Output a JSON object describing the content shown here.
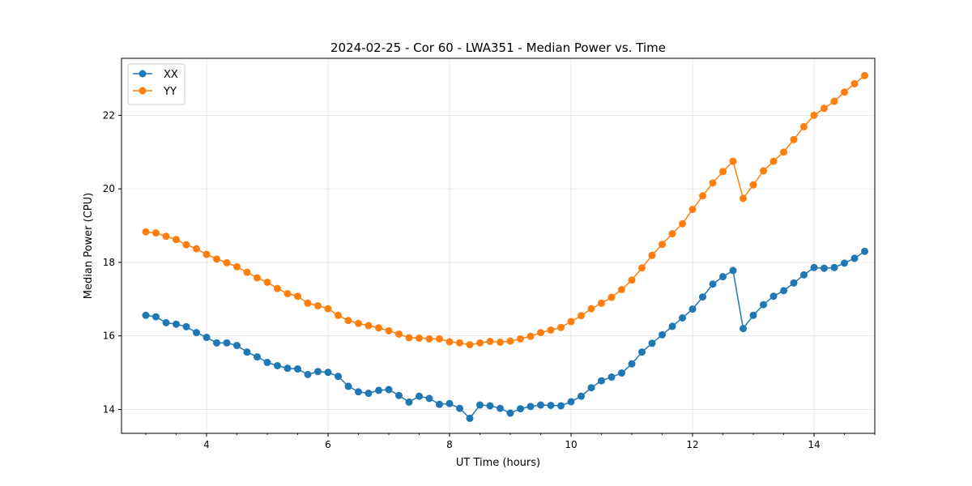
{
  "chart_data": {
    "type": "line",
    "title": "2024-02-25 - Cor 60 - LWA351 - Median Power vs. Time",
    "xlabel": "UT Time (hours)",
    "ylabel": "Median Power (CPU)",
    "xlim": [
      2.6,
      15.0
    ],
    "ylim": [
      13.35,
      23.55
    ],
    "xticks": [
      4,
      6,
      8,
      10,
      12,
      14
    ],
    "xtick_labels": [
      "4",
      "6",
      "8",
      "10",
      "12",
      "14"
    ],
    "yticks": [
      14,
      16,
      18,
      20,
      22
    ],
    "ytick_labels": [
      "14",
      "16",
      "18",
      "20",
      "22"
    ],
    "grid": true,
    "legend_position": "top-left",
    "x": [
      3.0,
      3.1667,
      3.3333,
      3.5,
      3.6667,
      3.8333,
      4.0,
      4.1667,
      4.3333,
      4.5,
      4.6667,
      4.8333,
      5.0,
      5.1667,
      5.3333,
      5.5,
      5.6667,
      5.8333,
      6.0,
      6.1667,
      6.3333,
      6.5,
      6.6667,
      6.8333,
      7.0,
      7.1667,
      7.3333,
      7.5,
      7.6667,
      7.8333,
      8.0,
      8.1667,
      8.3333,
      8.5,
      8.6667,
      8.8333,
      9.0,
      9.1667,
      9.3333,
      9.5,
      9.6667,
      9.8333,
      10.0,
      10.1667,
      10.3333,
      10.5,
      10.6667,
      10.8333,
      11.0,
      11.1667,
      11.3333,
      11.5,
      11.6667,
      11.8333,
      12.0,
      12.1667,
      12.3333,
      12.5,
      12.6667,
      12.8333,
      13.0,
      13.1667,
      13.3333,
      13.5,
      13.6667,
      13.8333,
      14.0,
      14.1667,
      14.3333,
      14.5,
      14.6667,
      14.8333
    ],
    "series": [
      {
        "name": "XX",
        "color": "#1f77b4",
        "values": [
          16.56,
          16.52,
          16.36,
          16.32,
          16.25,
          16.09,
          15.96,
          15.81,
          15.81,
          15.74,
          15.56,
          15.43,
          15.28,
          15.19,
          15.12,
          15.1,
          14.95,
          15.03,
          15.01,
          14.9,
          14.63,
          14.48,
          14.44,
          14.52,
          14.54,
          14.38,
          14.2,
          14.36,
          14.3,
          14.14,
          14.16,
          14.03,
          13.76,
          14.12,
          14.1,
          14.03,
          13.9,
          14.02,
          14.08,
          14.12,
          14.11,
          14.1,
          14.21,
          14.36,
          14.59,
          14.78,
          14.88,
          14.99,
          15.24,
          15.56,
          15.8,
          16.03,
          16.26,
          16.49,
          16.73,
          17.06,
          17.41,
          17.61,
          17.78,
          16.2,
          16.56,
          16.85,
          17.08,
          17.23,
          17.44,
          17.66,
          17.86,
          17.84,
          17.86,
          17.98,
          18.11,
          18.3
        ]
      },
      {
        "name": "YY",
        "color": "#ff7f0e",
        "values": [
          18.83,
          18.8,
          18.71,
          18.62,
          18.48,
          18.37,
          18.22,
          18.09,
          17.99,
          17.88,
          17.73,
          17.58,
          17.46,
          17.29,
          17.15,
          17.08,
          16.89,
          16.82,
          16.74,
          16.56,
          16.42,
          16.34,
          16.28,
          16.22,
          16.14,
          16.05,
          15.95,
          15.94,
          15.92,
          15.92,
          15.84,
          15.81,
          15.76,
          15.81,
          15.85,
          15.83,
          15.86,
          15.92,
          15.99,
          16.09,
          16.16,
          16.23,
          16.39,
          16.55,
          16.74,
          16.89,
          17.05,
          17.26,
          17.52,
          17.85,
          18.19,
          18.49,
          18.78,
          19.05,
          19.44,
          19.81,
          20.16,
          20.47,
          20.75,
          19.74,
          20.11,
          20.49,
          20.75,
          21.0,
          21.34,
          21.69,
          22.0,
          22.19,
          22.38,
          22.63,
          22.86,
          23.08
        ]
      }
    ]
  }
}
